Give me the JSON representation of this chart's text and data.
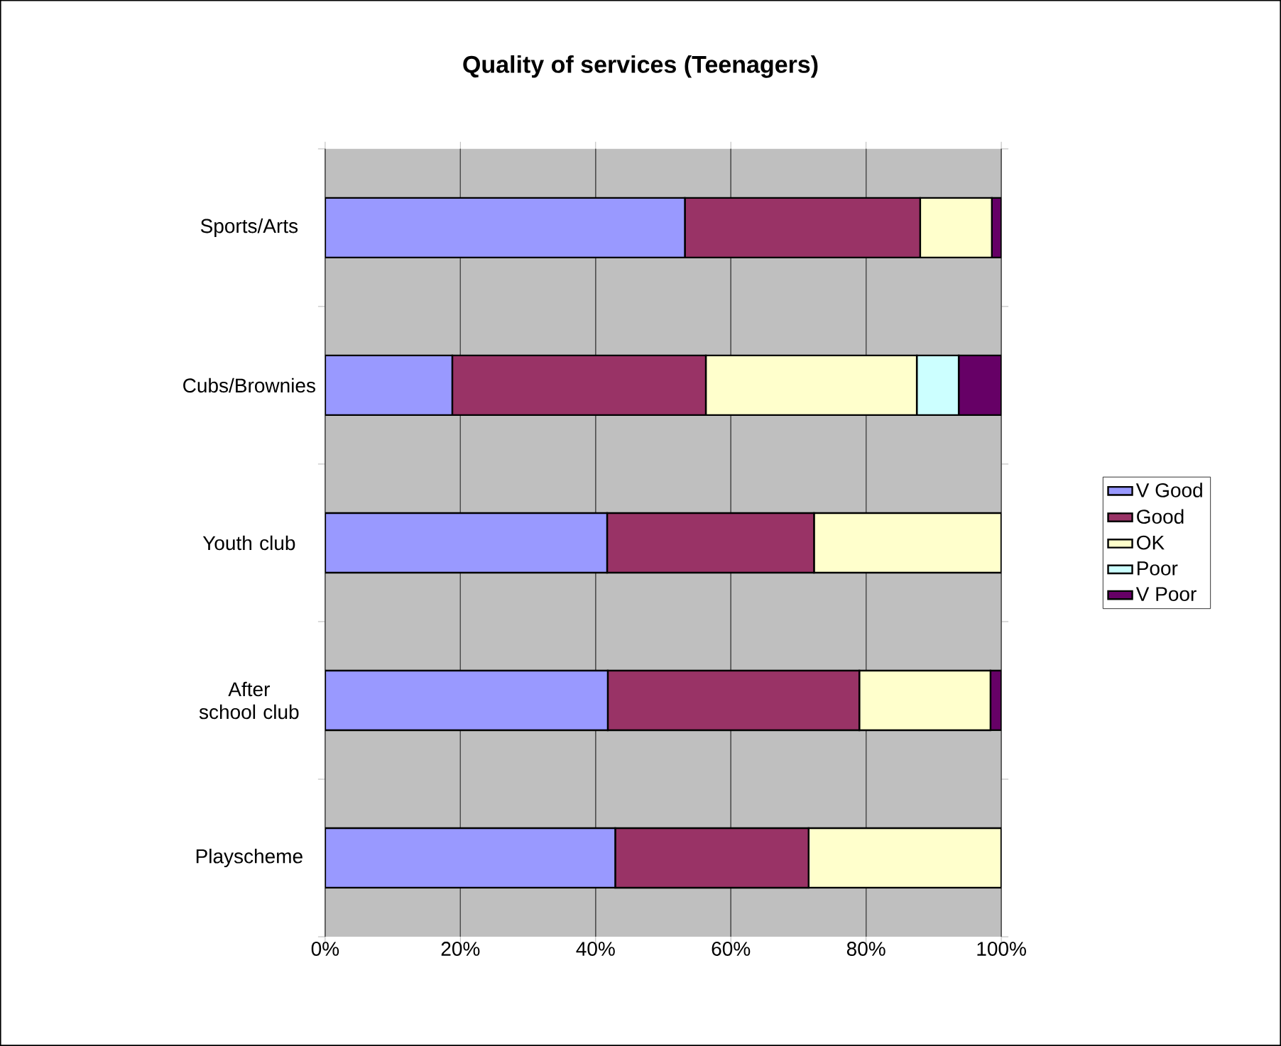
{
  "chart_data": {
    "type": "bar",
    "title": "Quality of services (Teenagers)",
    "orientation": "horizontal",
    "stacked": true,
    "categories": [
      "Sports/Arts",
      "Cubs/Brownies",
      "Youth club",
      "After school club",
      "Playscheme"
    ],
    "series": [
      {
        "name": "V Good",
        "color": "#9999ff",
        "values": [
          53.2,
          18.8,
          41.7,
          41.8,
          42.9
        ]
      },
      {
        "name": "Good",
        "color": "#993366",
        "values": [
          34.8,
          37.5,
          30.6,
          37.2,
          28.6
        ]
      },
      {
        "name": "OK",
        "color": "#ffffcc",
        "values": [
          10.6,
          31.2,
          27.7,
          19.4,
          28.5
        ]
      },
      {
        "name": "Poor",
        "color": "#ccffff",
        "values": [
          0,
          6.2,
          0,
          0,
          0
        ]
      },
      {
        "name": "V Poor",
        "color": "#660066",
        "values": [
          1.4,
          6.3,
          0,
          1.6,
          0
        ]
      }
    ],
    "xlim": [
      0,
      100
    ],
    "xticks": [
      {
        "value": 0,
        "label": "0%"
      },
      {
        "value": 20,
        "label": "20%"
      },
      {
        "value": 40,
        "label": "40%"
      },
      {
        "value": 60,
        "label": "60%"
      },
      {
        "value": 80,
        "label": "80%"
      },
      {
        "value": 100,
        "label": "100%"
      }
    ],
    "grid": "x",
    "legend": "right"
  }
}
